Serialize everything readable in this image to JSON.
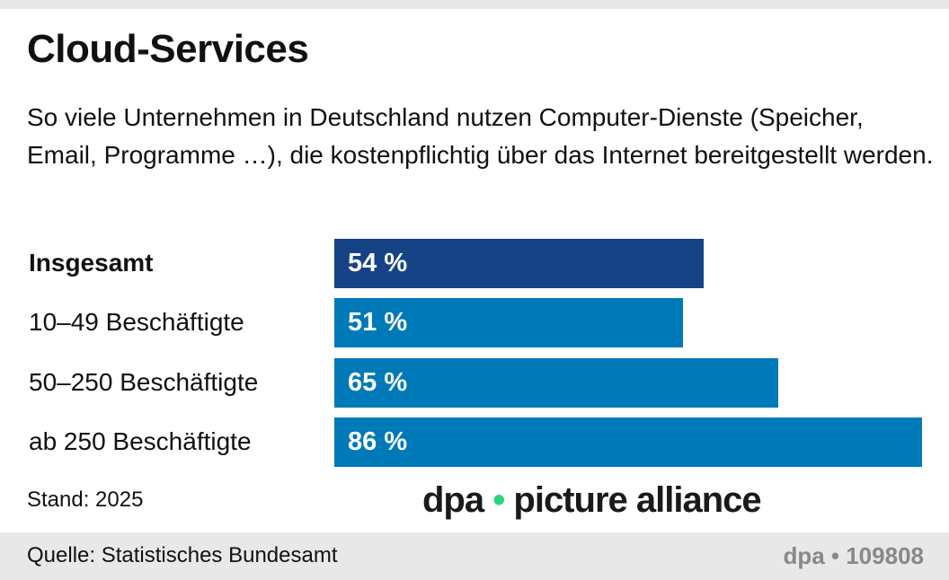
{
  "header": {
    "title": "Cloud-Services",
    "subtitle": "So viele Unternehmen in Deutschland nutzen Computer-Dienste (Speicher, Email, Programme …), die kostenpflichtig über das Internet bereitgestellt werden."
  },
  "chart_data": {
    "type": "bar",
    "orientation": "horizontal",
    "title": "Cloud-Services",
    "categories": [
      "Insgesamt",
      "10–49 Beschäftigte",
      "50–250 Beschäftigte",
      "ab 250 Beschäftigte"
    ],
    "values": [
      54,
      51,
      65,
      86
    ],
    "value_labels": [
      "54 %",
      "51 %",
      "65 %",
      "86 %"
    ],
    "unit": "%",
    "xlim": [
      0,
      86
    ],
    "grid": false,
    "colors": [
      "#164386",
      "#0079b9",
      "#0079b9",
      "#0079b9"
    ]
  },
  "footer": {
    "stand": "Stand: 2025",
    "source": "Quelle: Statistisches Bundesamt",
    "credit": "dpa • 109808"
  },
  "watermark": {
    "text_left": "dpa",
    "dot": "•",
    "text_right": "picture alliance"
  }
}
